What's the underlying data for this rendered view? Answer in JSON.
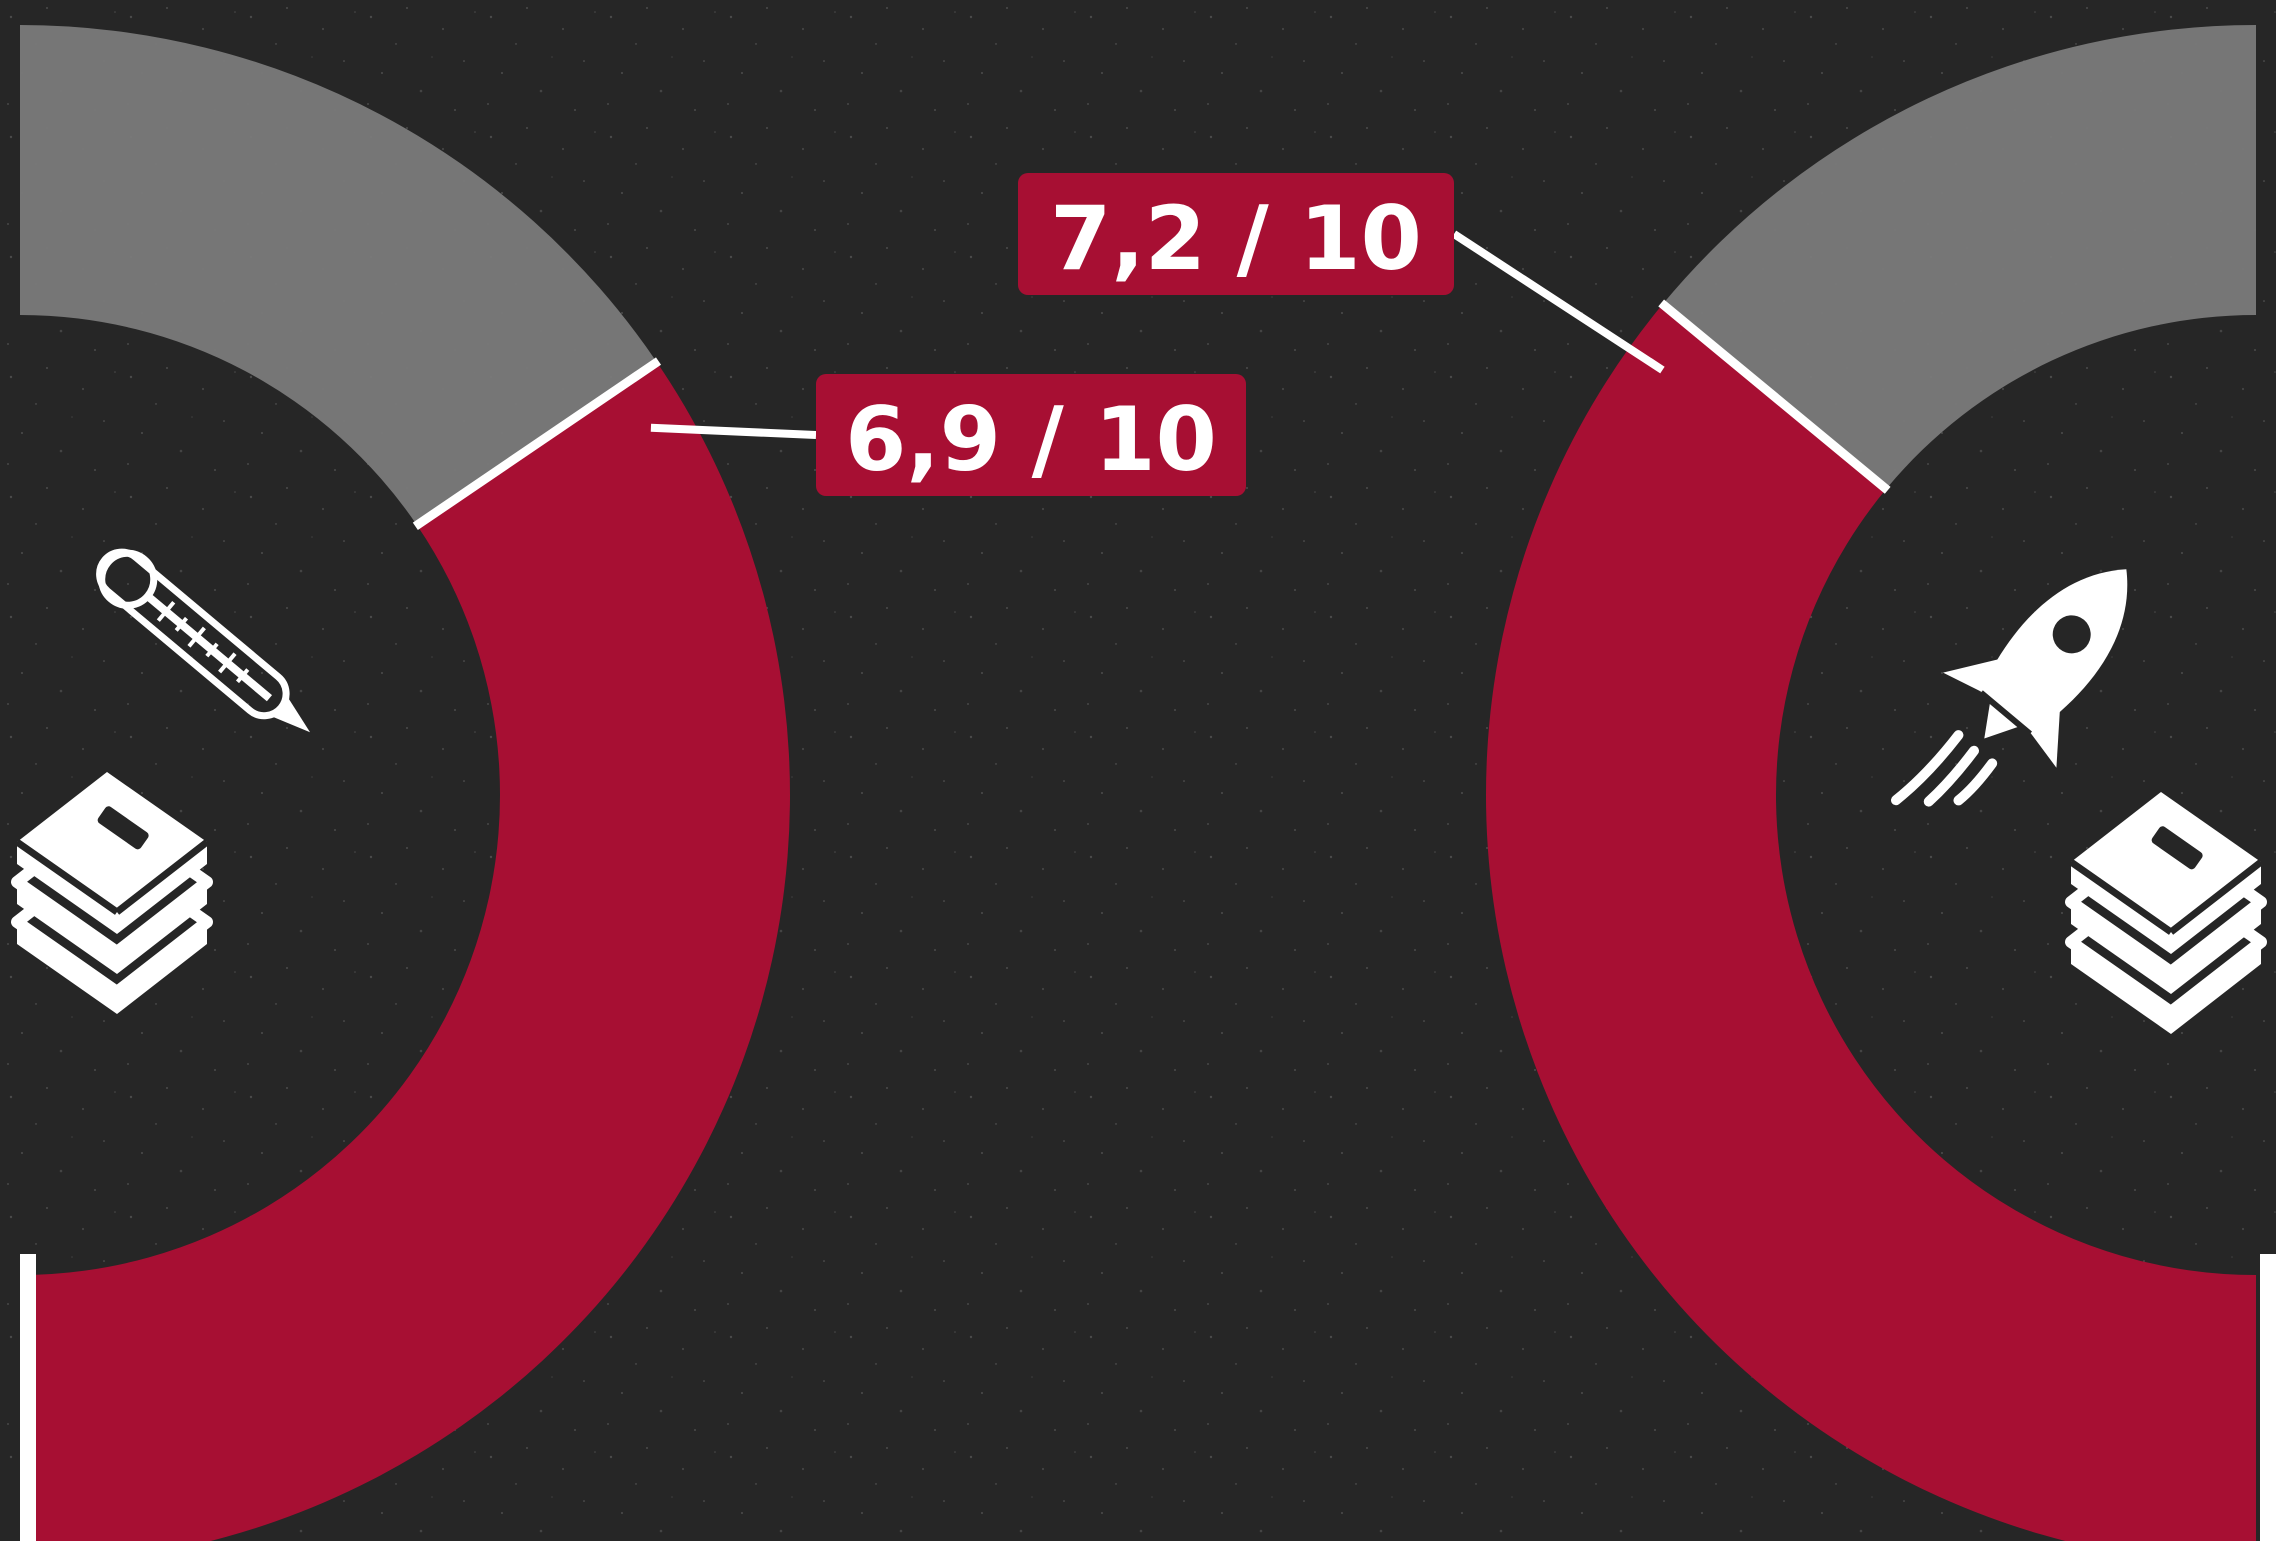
{
  "chart_data": [
    {
      "type": "pie",
      "subtype": "semi-donut gauge",
      "value": 6.9,
      "max": 10,
      "label": "6,9 / 10",
      "icon": "thermometer-books-icon",
      "colors": {
        "filled": "#a70f33",
        "remaining": "#7a7a7a"
      }
    },
    {
      "type": "pie",
      "subtype": "semi-donut gauge",
      "value": 7.2,
      "max": 10,
      "label": "7,2 / 10",
      "icon": "rocket-books-icon",
      "colors": {
        "filled": "#a70f33",
        "remaining": "#7a7a7a"
      }
    }
  ],
  "colors": {
    "background": "#262626",
    "accent": "#a70f33",
    "remaining": "#7a7a7a",
    "line": "#ffffff"
  }
}
